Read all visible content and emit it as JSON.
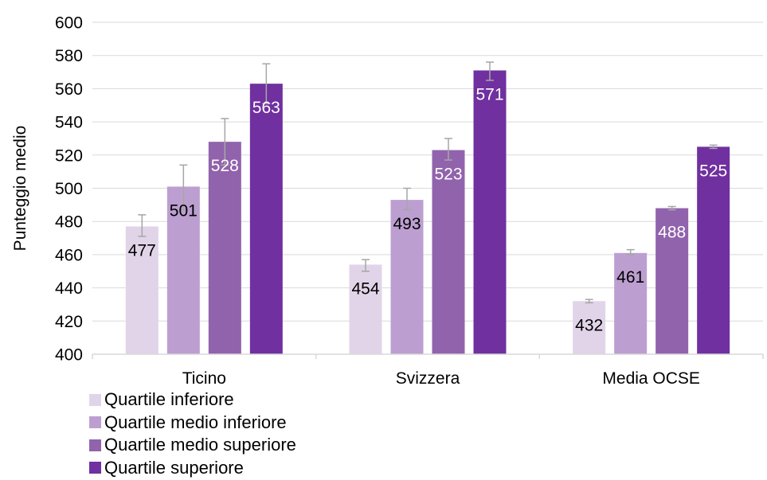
{
  "chart_data": {
    "type": "bar",
    "title": "",
    "xlabel": "",
    "ylabel": "Punteggio medio",
    "ylim": [
      400,
      600
    ],
    "yticks": [
      400,
      420,
      440,
      460,
      480,
      500,
      520,
      540,
      560,
      580,
      600
    ],
    "grid": true,
    "legend_position": "bottom-left",
    "categories": [
      "Ticino",
      "Svizzera",
      "Media OCSE"
    ],
    "series": [
      {
        "name": "Quartile inferiore",
        "color": "#e1d4e9",
        "label_color": "#000000",
        "values": [
          477,
          454,
          432
        ],
        "error_low": [
          471,
          450,
          431
        ],
        "error_high": [
          484,
          457,
          433
        ]
      },
      {
        "name": "Quartile medio inferiore",
        "color": "#bc9fd0",
        "label_color": "#000000",
        "values": [
          501,
          493,
          461
        ],
        "error_low": [
          487,
          487,
          460
        ],
        "error_high": [
          514,
          500,
          463
        ]
      },
      {
        "name": "Quartile medio superiore",
        "color": "#9163ac",
        "label_color": "#ffffff",
        "values": [
          528,
          523,
          488
        ],
        "error_low": [
          514,
          517,
          487
        ],
        "error_high": [
          542,
          530,
          489
        ]
      },
      {
        "name": "Quartile superiore",
        "color": "#7030a0",
        "label_color": "#ffffff",
        "values": [
          563,
          571,
          525
        ],
        "error_low": [
          551,
          565,
          524
        ],
        "error_high": [
          575,
          576,
          526
        ]
      }
    ],
    "error_bar_color": "#a6a6a6",
    "gridline_color": "#d9d9d9"
  }
}
